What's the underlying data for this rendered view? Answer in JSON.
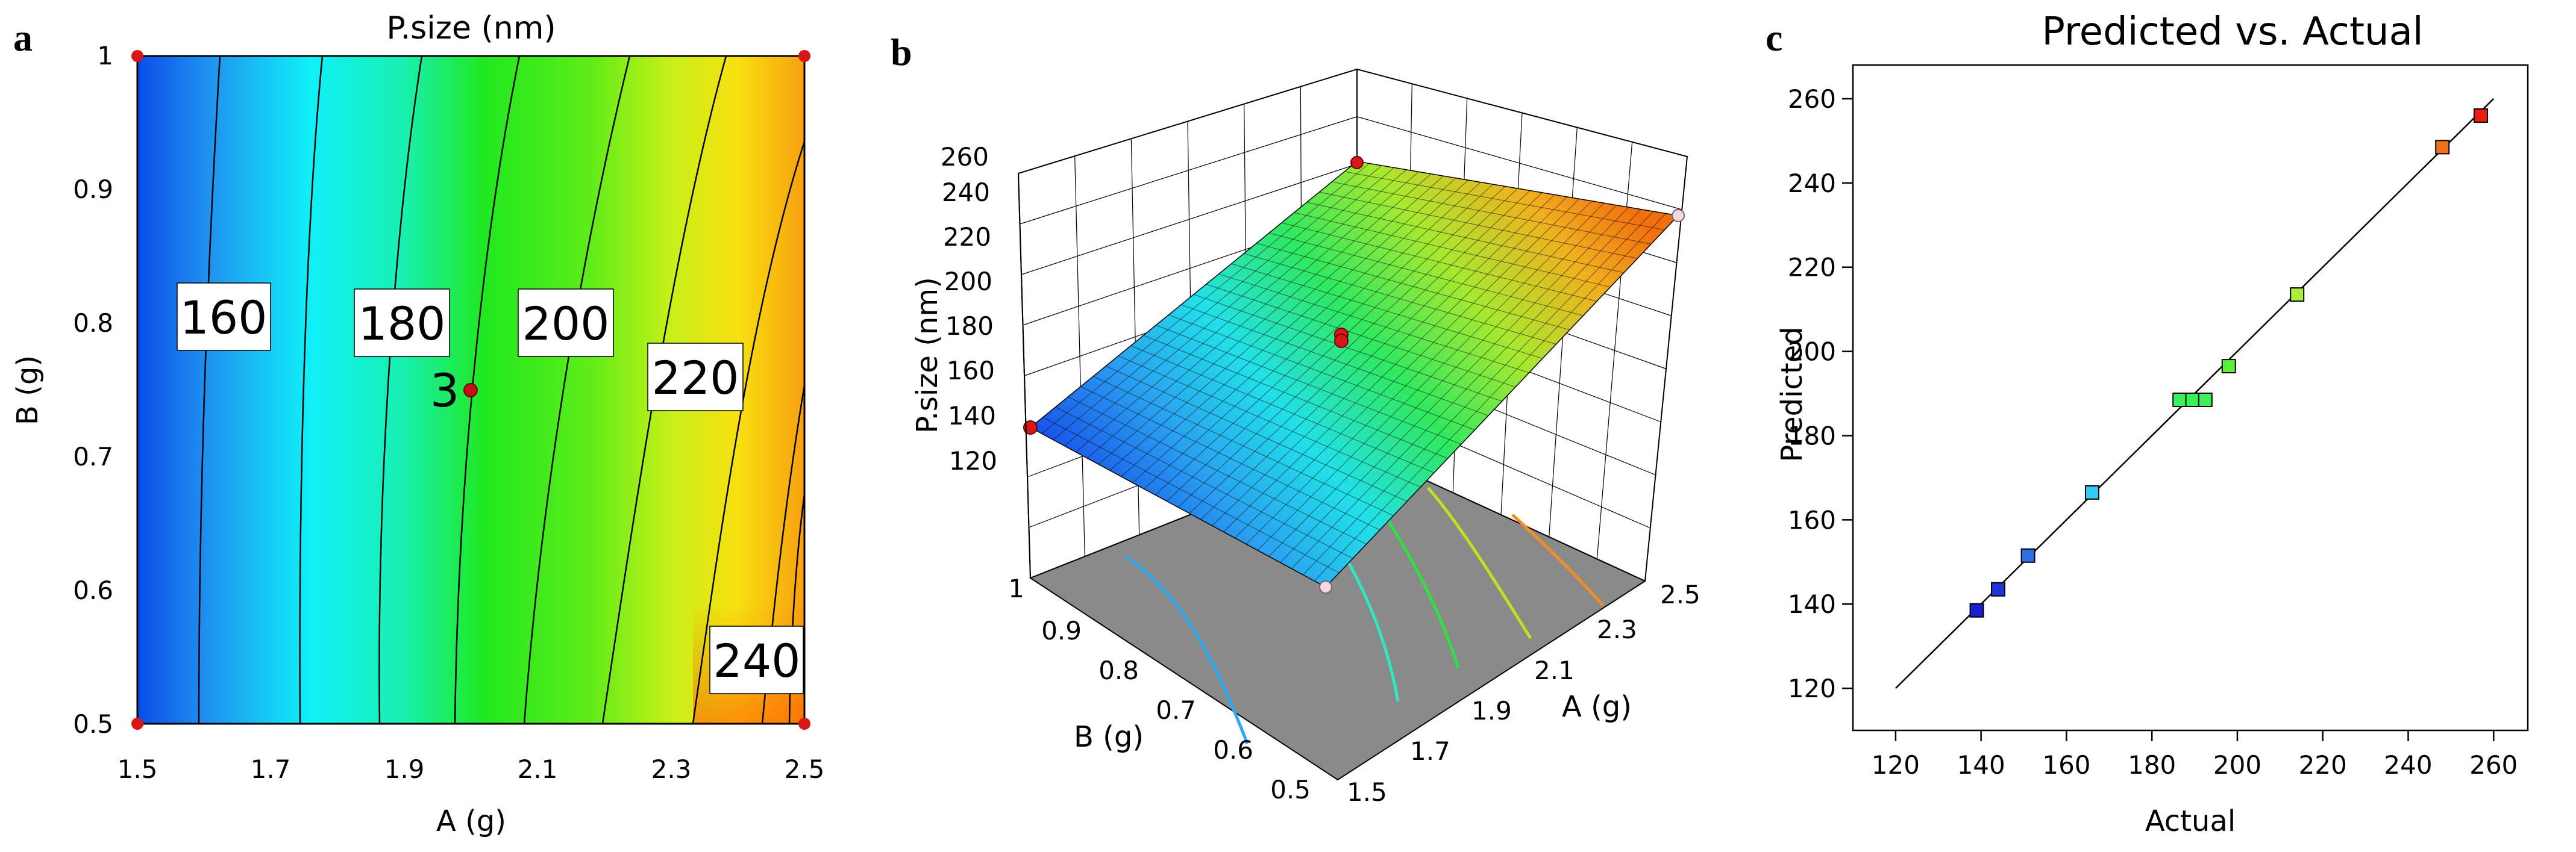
{
  "panels": {
    "a": "a",
    "b": "b",
    "c": "c"
  },
  "chart_data": [
    {
      "type": "contour",
      "title": "P.size (nm)",
      "xlabel": "A (g)",
      "ylabel": "B (g)",
      "xlim": [
        1.5,
        2.5
      ],
      "ylim": [
        0.5,
        1
      ],
      "x_ticks": [
        "1.5",
        "1.7",
        "1.9",
        "2.1",
        "2.3",
        "2.5"
      ],
      "y_ticks": [
        "0.5",
        "0.6",
        "0.7",
        "0.8",
        "0.9",
        "1"
      ],
      "contour_labels": [
        "160",
        "180",
        "200",
        "220",
        "240"
      ],
      "center_point": {
        "label": "3",
        "x": 2.0,
        "y": 0.75
      },
      "design_points": [
        [
          1.5,
          1.0
        ],
        [
          2.5,
          1.0
        ],
        [
          1.5,
          0.5
        ],
        [
          2.5,
          0.5
        ]
      ]
    },
    {
      "type": "surface3d",
      "zlabel": "P.size (nm)",
      "xlabel": "A (g)",
      "ylabel": "B (g)",
      "z_ticks": [
        "120",
        "140",
        "160",
        "180",
        "200",
        "220",
        "240",
        "260"
      ],
      "x_ticks": [
        "1.5",
        "1.7",
        "1.9",
        "2.1",
        "2.3",
        "2.5"
      ],
      "y_ticks": [
        "0.5",
        "0.6",
        "0.7",
        "0.8",
        "0.9",
        "1"
      ],
      "xlim": [
        1.5,
        2.5
      ],
      "ylim": [
        0.5,
        1
      ],
      "zlim": [
        120,
        260
      ]
    },
    {
      "type": "scatter",
      "title": "Predicted vs. Actual",
      "xlabel": "Actual",
      "ylabel": "Predicted",
      "xlim": [
        110,
        268
      ],
      "ylim": [
        110,
        268
      ],
      "x_ticks": [
        "120",
        "140",
        "160",
        "180",
        "200",
        "220",
        "240",
        "260"
      ],
      "y_ticks": [
        "120",
        "140",
        "160",
        "180",
        "200",
        "220",
        "240",
        "260"
      ],
      "points": [
        {
          "actual": 139,
          "predicted": 138.5,
          "color": "#1a1fd0"
        },
        {
          "actual": 144,
          "predicted": 143.5,
          "color": "#2234d8"
        },
        {
          "actual": 151,
          "predicted": 151.5,
          "color": "#2f6fe6"
        },
        {
          "actual": 166,
          "predicted": 166.5,
          "color": "#35c8f0"
        },
        {
          "actual": 186.5,
          "predicted": 188.5,
          "color": "#3cf05a"
        },
        {
          "actual": 189.5,
          "predicted": 188.5,
          "color": "#3cf05a"
        },
        {
          "actual": 192.5,
          "predicted": 188.5,
          "color": "#3cf05a"
        },
        {
          "actual": 198,
          "predicted": 196.5,
          "color": "#5cf03a"
        },
        {
          "actual": 214,
          "predicted": 213.5,
          "color": "#a8f03c"
        },
        {
          "actual": 248,
          "predicted": 248.5,
          "color": "#f0701c"
        },
        {
          "actual": 257,
          "predicted": 256,
          "color": "#e81e10"
        }
      ],
      "fit_line": [
        [
          120,
          120
        ],
        [
          260,
          260
        ]
      ]
    }
  ]
}
